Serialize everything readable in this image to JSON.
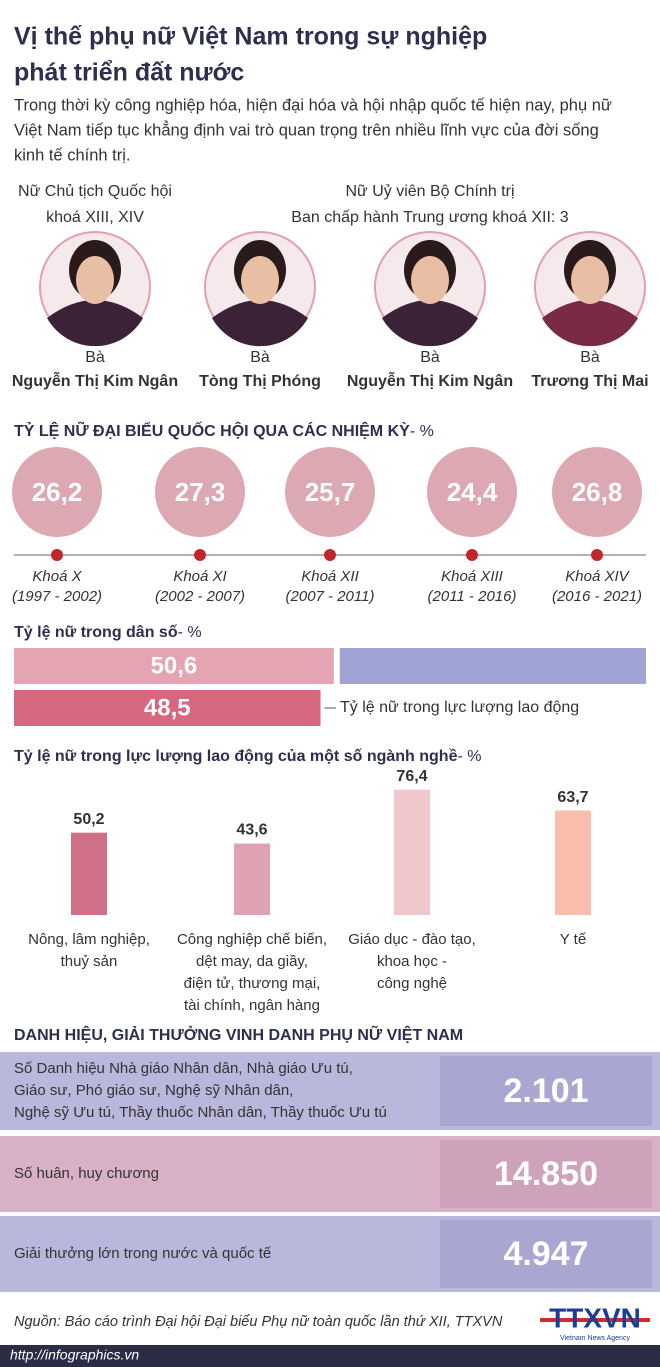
{
  "header": {
    "title": [
      "Vị thế phụ nữ Việt Nam trong sự nghiệp",
      "phát triển đất nước"
    ],
    "intro": [
      "Trong thời kỳ công nghiệp hóa, hiện đại hóa và hội nhập quốc tế hiện nay, phụ nữ",
      "Việt Nam tiếp tục khẳng định vai trò quan trọng trên nhiều lĩnh vực của đời sống",
      "kinh tế chính trị."
    ]
  },
  "leaders": {
    "groups": [
      {
        "label": [
          "Nữ Chủ tịch Quốc hội",
          "khoá XIII, XIV"
        ]
      },
      {
        "label": [
          "Nữ Uỷ viên Bộ Chính trị",
          "Ban chấp hành Trung ương khoá XII: 3"
        ]
      }
    ],
    "people": [
      {
        "prefix": "Bà",
        "name": "Nguyễn Thị Kim Ngân"
      },
      {
        "prefix": "Bà",
        "name": "Tòng Thị Phóng"
      },
      {
        "prefix": "Bà",
        "name": "Nguyễn Thị Kim Ngân"
      },
      {
        "prefix": "Bà",
        "name": "Trương Thị Mai"
      }
    ]
  },
  "terms": {
    "title": "TỶ LỆ NỮ ĐẠI BIỂU QUỐC HỘI QUA CÁC NHIỆM KỲ",
    "unit": "- %",
    "items": [
      {
        "value": "26,2",
        "term": "Khoá X",
        "years": "(1997 - 2002)"
      },
      {
        "value": "27,3",
        "term": "Khoá XI",
        "years": "(2002 - 2007)"
      },
      {
        "value": "25,7",
        "term": "Khoá XII",
        "years": "(2007 - 2011)"
      },
      {
        "value": "24,4",
        "term": "Khoá XIII",
        "years": "(2011 - 2016)"
      },
      {
        "value": "26,8",
        "term": "Khoá XIV",
        "years": "(2016 - 2021)"
      }
    ]
  },
  "population": {
    "title": "Tỷ lệ nữ trong dân số",
    "unit": "- %",
    "population": {
      "value": 50.6,
      "label": "50,6",
      "color": "#e4a4b2"
    },
    "labor": {
      "value": 48.5,
      "label": "48,5",
      "color": "#d5687f",
      "caption": "Tỷ lệ nữ trong lực lượng lao động"
    }
  },
  "sectors": {
    "title": "Tỷ lệ nữ trong lực lượng lao động của một số ngành nghề",
    "unit": "- %",
    "items": [
      {
        "value": 50.2,
        "label": "50,2",
        "color": "#cf7088",
        "name": [
          "Nông, lâm nghiệp,",
          "thuỷ sản"
        ]
      },
      {
        "value": 43.6,
        "label": "43,6",
        "color": "#dea2b1",
        "name": [
          "Công nghiệp chế biến,",
          "dệt may, da giầy,",
          "điện tử, thương mại,",
          "tài chính, ngân hàng"
        ]
      },
      {
        "value": 76.4,
        "label": "76,4",
        "color": "#f1c7ce",
        "name": [
          "Giáo dục - đào tạo,",
          "khoa học -",
          "công nghệ"
        ]
      },
      {
        "value": 63.7,
        "label": "63,7",
        "color": "#f9bdae",
        "name": [
          "Y tế"
        ]
      }
    ]
  },
  "awards": {
    "title": "DANH HIỆU, GIẢI THƯỞNG VINH DANH PHỤ NỮ VIỆT NAM",
    "rows": [
      {
        "label": [
          "Số Danh hiệu Nhà giáo Nhân dân, Nhà giáo Ưu tú,",
          "Giáo sư, Phó giáo sư, Nghệ sỹ Nhân dân,",
          "Nghệ sỹ Ưu tú, Thầy thuốc Nhân dân, Thầy thuốc Ưu tú"
        ],
        "value": "2.101"
      },
      {
        "label": [
          "Số huân, huy chương"
        ],
        "value": "14.850"
      },
      {
        "label": [
          "Giải thưởng lớn trong nước và quốc tế"
        ],
        "value": "4.947"
      }
    ]
  },
  "footer": {
    "source": "Nguồn: Báo cáo trình Đại hội Đại biểu Phụ nữ toàn quốc lần thứ XII, TTXVN",
    "logo": "TTXVN",
    "logo_sub": "Vietnam News Agency",
    "url": "http://infographics.vn"
  }
}
